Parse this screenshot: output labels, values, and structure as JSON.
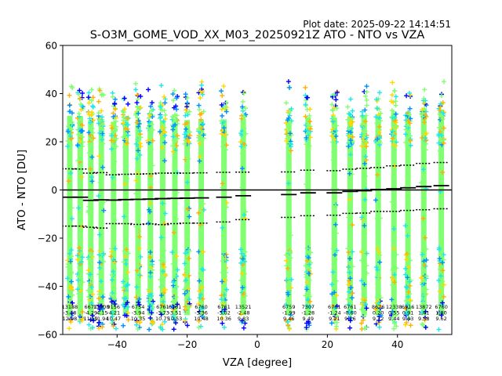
{
  "plot_date": "Plot date: 2025-09-22 14:14:51",
  "chart_data": {
    "type": "scatter",
    "title": "S-O3M_GOME_VOD_XX_M03_20250921Z ATO - NTO vs VZA",
    "xlabel": "VZA [degree]",
    "ylabel": "ATO - NTO [DU]",
    "xlim": [
      -55.5,
      55.5
    ],
    "ylim": [
      -60,
      60
    ],
    "xticks": [
      -40,
      -20,
      0,
      20,
      40
    ],
    "yticks": [
      -60,
      -40,
      -20,
      0,
      20,
      40,
      60
    ],
    "xtick_labels": [
      "−40",
      "−20",
      "0",
      "20",
      "40"
    ],
    "ytick_labels": [
      "−60",
      "−40",
      "−20",
      "0",
      "20",
      "40",
      "60"
    ],
    "colors": {
      "blue": "#0000ff",
      "deepskyblue": "#0090ff",
      "cyan": "#1ee8e8",
      "lime": "#80ff70",
      "yellow": "#ffd800",
      "orange": "#ffb000",
      "line": "#000000"
    },
    "bins": [
      {
        "vza": -53.5,
        "count": "13188",
        "mean": "-3.18",
        "std": "12.08",
        "median": -3.0,
        "p_low": -15.0,
        "p_high": 8.8
      },
      {
        "vza": -50.5,
        "count": "",
        "mean": "",
        "std": "",
        "median": -3.0,
        "p_low": -15.0,
        "p_high": 8.7
      },
      {
        "vza": -47.5,
        "count": "6671",
        "mean": "-4.29",
        "std": "11.59",
        "median": -4.3,
        "p_low": -15.5,
        "p_high": 7.0
      },
      {
        "vza": -44.5,
        "count": "11000",
        "mean": "-4.15",
        "std": "11.94",
        "median": -4.1,
        "p_low": -15.8,
        "p_high": 7.2
      },
      {
        "vza": -41.0,
        "count": "9156",
        "mean": "-4.21",
        "std": "10.47",
        "median": -4.2,
        "p_low": -14.0,
        "p_high": 6.3
      },
      {
        "vza": -37.5,
        "count": "",
        "mean": "",
        "std": "",
        "median": -4.0,
        "p_low": -14.0,
        "p_high": 6.5
      },
      {
        "vza": -34.0,
        "count": "6754",
        "mean": "-3.94",
        "std": "10.35",
        "median": -3.9,
        "p_low": -14.3,
        "p_high": 6.6
      },
      {
        "vza": -30.5,
        "count": "",
        "mean": "",
        "std": "",
        "median": -3.8,
        "p_low": -14.1,
        "p_high": 6.7
      },
      {
        "vza": -27.0,
        "count": "6761",
        "mean": "-3.73",
        "std": "10.75",
        "median": -3.6,
        "p_low": -14.4,
        "p_high": 7.0
      },
      {
        "vza": -23.5,
        "count": "6761",
        "mean": "-3.51",
        "std": "10.53",
        "median": -3.5,
        "p_low": -14.0,
        "p_high": 7.0
      },
      {
        "vza": -20.0,
        "count": "",
        "mean": "",
        "std": "",
        "median": -3.4,
        "p_low": -13.8,
        "p_high": 7.0
      },
      {
        "vza": -16.0,
        "count": "6760",
        "mean": "-3.36",
        "std": "10.48",
        "median": -3.3,
        "p_low": -13.8,
        "p_high": 7.1
      },
      {
        "vza": -9.5,
        "count": "6761",
        "mean": "-3.02",
        "std": "10.36",
        "median": -3.0,
        "p_low": -13.3,
        "p_high": 7.3
      },
      {
        "vza": -4.0,
        "count": "13521",
        "mean": "-2.48",
        "std": "9.83",
        "median": -2.4,
        "p_low": -12.3,
        "p_high": 7.4
      },
      {
        "vza": 9.0,
        "count": "6759",
        "mean": "-1.99",
        "std": "9.46",
        "median": -1.9,
        "p_low": -11.4,
        "p_high": 7.5
      },
      {
        "vza": 14.5,
        "count": "7307",
        "mean": "-1.28",
        "std": "9.49",
        "median": -1.2,
        "p_low": -10.7,
        "p_high": 8.2
      },
      {
        "vza": 22.0,
        "count": "6761",
        "mean": "-1.24",
        "std": "9.21",
        "median": -1.2,
        "p_low": -10.5,
        "p_high": 8.0
      },
      {
        "vza": 26.5,
        "count": "6761",
        "mean": "-0.60",
        "std": "9.16",
        "median": -0.6,
        "p_low": -9.7,
        "p_high": 8.6
      },
      {
        "vza": 30.5,
        "count": "",
        "mean": "",
        "std": "",
        "median": -0.3,
        "p_low": -9.6,
        "p_high": 9.0
      },
      {
        "vza": 34.5,
        "count": "8676",
        "mean": "0.20",
        "std": "9.12",
        "median": 0.2,
        "p_low": -8.9,
        "p_high": 9.3
      },
      {
        "vza": 39.0,
        "count": "12338",
        "mean": "0.55",
        "std": "9.44",
        "median": 0.5,
        "p_low": -8.9,
        "p_high": 10.0
      },
      {
        "vza": 43.0,
        "count": "6916",
        "mean": "0.91",
        "std": "9.43",
        "median": 0.9,
        "p_low": -8.5,
        "p_high": 10.3
      },
      {
        "vza": 47.5,
        "count": "13872",
        "mean": "1.41",
        "std": "9.58",
        "median": 1.4,
        "p_low": -8.2,
        "p_high": 11.0
      },
      {
        "vza": 52.5,
        "count": "6760",
        "mean": "1.80",
        "std": "9.62",
        "median": 1.8,
        "p_low": -7.8,
        "p_high": 11.4
      }
    ],
    "scatter_range": {
      "low": -58,
      "high": 46
    },
    "zero_line": 0
  }
}
